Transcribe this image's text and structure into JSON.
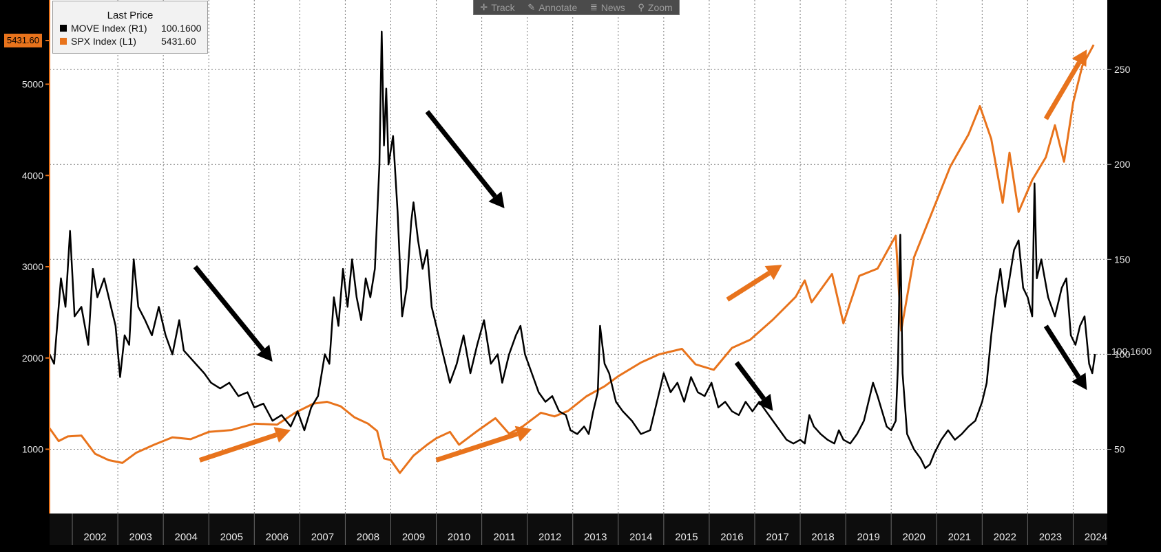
{
  "toolbar": {
    "items": [
      {
        "label": "Track",
        "icon": "crosshair-icon",
        "glyph": "✛"
      },
      {
        "label": "Annotate",
        "icon": "pencil-icon",
        "glyph": "✎"
      },
      {
        "label": "News",
        "icon": "news-icon",
        "glyph": "≣"
      },
      {
        "label": "Zoom",
        "icon": "magnifier-icon",
        "glyph": "⚲"
      }
    ]
  },
  "legend": {
    "title": "Last Price",
    "entries": [
      {
        "name": "MOVE Index  (R1)",
        "value": "100.1600",
        "color": "#000000"
      },
      {
        "name": "SPX Index  (L1)",
        "value": "5431.60",
        "color": "#e8731c"
      }
    ]
  },
  "badges": {
    "left_last": "5431.60",
    "right_last": "100.1600"
  },
  "colors": {
    "background": "#000000",
    "plot_background": "#ffffff",
    "spx": "#e8731c",
    "move": "#000000",
    "grid": "#7a7a7a"
  },
  "chart_data": {
    "type": "line",
    "x_ticks": [
      "2002",
      "2003",
      "2004",
      "2005",
      "2006",
      "2007",
      "2008",
      "2009",
      "2010",
      "2011",
      "2012",
      "2013",
      "2014",
      "2015",
      "2016",
      "2017",
      "2018",
      "2019",
      "2020",
      "2021",
      "2022",
      "2023",
      "2024"
    ],
    "left_axis": {
      "series": "SPX Index",
      "ticks": [
        1000,
        2000,
        3000,
        4000,
        5000
      ],
      "ylim": [
        500,
        5700
      ]
    },
    "right_axis": {
      "series": "MOVE Index",
      "ticks": [
        50,
        100,
        150,
        200,
        250
      ],
      "ylim": [
        15,
        285
      ]
    },
    "grid": true,
    "legend_position": "top-left",
    "series": [
      {
        "name": "SPX Index",
        "axis": "left",
        "color": "#e8731c",
        "points": [
          [
            2001.5,
            1230
          ],
          [
            2001.7,
            1090
          ],
          [
            2001.9,
            1140
          ],
          [
            2002.2,
            1150
          ],
          [
            2002.5,
            950
          ],
          [
            2002.8,
            880
          ],
          [
            2003.1,
            850
          ],
          [
            2003.4,
            960
          ],
          [
            2003.8,
            1050
          ],
          [
            2004.2,
            1130
          ],
          [
            2004.6,
            1110
          ],
          [
            2005.0,
            1190
          ],
          [
            2005.5,
            1210
          ],
          [
            2006.0,
            1280
          ],
          [
            2006.5,
            1270
          ],
          [
            2006.9,
            1400
          ],
          [
            2007.3,
            1500
          ],
          [
            2007.6,
            1520
          ],
          [
            2007.9,
            1470
          ],
          [
            2008.2,
            1350
          ],
          [
            2008.5,
            1280
          ],
          [
            2008.7,
            1200
          ],
          [
            2008.85,
            900
          ],
          [
            2009.0,
            880
          ],
          [
            2009.2,
            740
          ],
          [
            2009.5,
            930
          ],
          [
            2009.8,
            1050
          ],
          [
            2010.0,
            1120
          ],
          [
            2010.3,
            1190
          ],
          [
            2010.5,
            1050
          ],
          [
            2010.9,
            1200
          ],
          [
            2011.3,
            1340
          ],
          [
            2011.6,
            1170
          ],
          [
            2011.9,
            1250
          ],
          [
            2012.3,
            1400
          ],
          [
            2012.6,
            1360
          ],
          [
            2012.9,
            1420
          ],
          [
            2013.3,
            1580
          ],
          [
            2013.7,
            1690
          ],
          [
            2014.0,
            1800
          ],
          [
            2014.5,
            1950
          ],
          [
            2014.9,
            2040
          ],
          [
            2015.4,
            2100
          ],
          [
            2015.7,
            1930
          ],
          [
            2016.1,
            1870
          ],
          [
            2016.5,
            2110
          ],
          [
            2016.9,
            2200
          ],
          [
            2017.4,
            2420
          ],
          [
            2017.9,
            2670
          ],
          [
            2018.1,
            2850
          ],
          [
            2018.25,
            2610
          ],
          [
            2018.7,
            2920
          ],
          [
            2018.95,
            2380
          ],
          [
            2019.3,
            2900
          ],
          [
            2019.7,
            2980
          ],
          [
            2020.1,
            3340
          ],
          [
            2020.22,
            2300
          ],
          [
            2020.5,
            3100
          ],
          [
            2020.9,
            3600
          ],
          [
            2021.3,
            4100
          ],
          [
            2021.7,
            4450
          ],
          [
            2021.95,
            4760
          ],
          [
            2022.2,
            4400
          ],
          [
            2022.45,
            3700
          ],
          [
            2022.6,
            4250
          ],
          [
            2022.8,
            3600
          ],
          [
            2023.1,
            3950
          ],
          [
            2023.4,
            4200
          ],
          [
            2023.6,
            4550
          ],
          [
            2023.8,
            4150
          ],
          [
            2024.0,
            4800
          ],
          [
            2024.2,
            5200
          ],
          [
            2024.45,
            5431.6
          ]
        ]
      },
      {
        "name": "MOVE Index",
        "axis": "right",
        "color": "#000000",
        "points": [
          [
            2001.5,
            100
          ],
          [
            2001.6,
            95
          ],
          [
            2001.75,
            140
          ],
          [
            2001.85,
            125
          ],
          [
            2001.95,
            165
          ],
          [
            2002.05,
            120
          ],
          [
            2002.2,
            125
          ],
          [
            2002.35,
            105
          ],
          [
            2002.45,
            145
          ],
          [
            2002.55,
            130
          ],
          [
            2002.7,
            140
          ],
          [
            2002.85,
            125
          ],
          [
            2002.95,
            115
          ],
          [
            2003.05,
            88
          ],
          [
            2003.15,
            110
          ],
          [
            2003.25,
            105
          ],
          [
            2003.35,
            150
          ],
          [
            2003.45,
            125
          ],
          [
            2003.6,
            118
          ],
          [
            2003.75,
            110
          ],
          [
            2003.9,
            125
          ],
          [
            2004.05,
            110
          ],
          [
            2004.2,
            100
          ],
          [
            2004.35,
            118
          ],
          [
            2004.45,
            102
          ],
          [
            2004.6,
            98
          ],
          [
            2004.75,
            94
          ],
          [
            2004.9,
            90
          ],
          [
            2005.05,
            85
          ],
          [
            2005.25,
            82
          ],
          [
            2005.45,
            85
          ],
          [
            2005.65,
            78
          ],
          [
            2005.85,
            80
          ],
          [
            2006.0,
            72
          ],
          [
            2006.2,
            74
          ],
          [
            2006.4,
            65
          ],
          [
            2006.6,
            68
          ],
          [
            2006.8,
            62
          ],
          [
            2006.95,
            70
          ],
          [
            2007.1,
            60
          ],
          [
            2007.25,
            72
          ],
          [
            2007.4,
            78
          ],
          [
            2007.55,
            100
          ],
          [
            2007.65,
            95
          ],
          [
            2007.75,
            130
          ],
          [
            2007.85,
            115
          ],
          [
            2007.95,
            145
          ],
          [
            2008.05,
            125
          ],
          [
            2008.15,
            150
          ],
          [
            2008.25,
            130
          ],
          [
            2008.35,
            118
          ],
          [
            2008.45,
            140
          ],
          [
            2008.55,
            130
          ],
          [
            2008.65,
            145
          ],
          [
            2008.75,
            200
          ],
          [
            2008.8,
            270
          ],
          [
            2008.85,
            210
          ],
          [
            2008.9,
            240
          ],
          [
            2008.95,
            200
          ],
          [
            2009.05,
            215
          ],
          [
            2009.15,
            175
          ],
          [
            2009.25,
            120
          ],
          [
            2009.35,
            135
          ],
          [
            2009.45,
            170
          ],
          [
            2009.5,
            180
          ],
          [
            2009.6,
            160
          ],
          [
            2009.7,
            145
          ],
          [
            2009.8,
            155
          ],
          [
            2009.9,
            125
          ],
          [
            2010.05,
            110
          ],
          [
            2010.15,
            100
          ],
          [
            2010.3,
            85
          ],
          [
            2010.45,
            95
          ],
          [
            2010.6,
            110
          ],
          [
            2010.75,
            90
          ],
          [
            2010.9,
            105
          ],
          [
            2011.05,
            118
          ],
          [
            2011.2,
            95
          ],
          [
            2011.35,
            100
          ],
          [
            2011.45,
            85
          ],
          [
            2011.6,
            100
          ],
          [
            2011.75,
            110
          ],
          [
            2011.85,
            115
          ],
          [
            2011.95,
            100
          ],
          [
            2012.1,
            90
          ],
          [
            2012.25,
            80
          ],
          [
            2012.4,
            75
          ],
          [
            2012.55,
            78
          ],
          [
            2012.7,
            70
          ],
          [
            2012.85,
            68
          ],
          [
            2012.95,
            60
          ],
          [
            2013.1,
            58
          ],
          [
            2013.25,
            62
          ],
          [
            2013.35,
            58
          ],
          [
            2013.45,
            70
          ],
          [
            2013.55,
            80
          ],
          [
            2013.6,
            115
          ],
          [
            2013.7,
            95
          ],
          [
            2013.8,
            90
          ],
          [
            2013.95,
            75
          ],
          [
            2014.1,
            70
          ],
          [
            2014.3,
            65
          ],
          [
            2014.5,
            58
          ],
          [
            2014.7,
            60
          ],
          [
            2014.85,
            75
          ],
          [
            2015.0,
            90
          ],
          [
            2015.15,
            80
          ],
          [
            2015.3,
            85
          ],
          [
            2015.45,
            75
          ],
          [
            2015.6,
            88
          ],
          [
            2015.75,
            80
          ],
          [
            2015.9,
            78
          ],
          [
            2016.05,
            85
          ],
          [
            2016.2,
            72
          ],
          [
            2016.35,
            75
          ],
          [
            2016.5,
            70
          ],
          [
            2016.65,
            68
          ],
          [
            2016.8,
            75
          ],
          [
            2016.95,
            70
          ],
          [
            2017.1,
            75
          ],
          [
            2017.25,
            70
          ],
          [
            2017.4,
            65
          ],
          [
            2017.55,
            60
          ],
          [
            2017.7,
            55
          ],
          [
            2017.85,
            53
          ],
          [
            2018.0,
            55
          ],
          [
            2018.1,
            53
          ],
          [
            2018.2,
            68
          ],
          [
            2018.3,
            62
          ],
          [
            2018.45,
            58
          ],
          [
            2018.6,
            55
          ],
          [
            2018.75,
            53
          ],
          [
            2018.85,
            60
          ],
          [
            2018.95,
            55
          ],
          [
            2019.1,
            53
          ],
          [
            2019.25,
            58
          ],
          [
            2019.4,
            65
          ],
          [
            2019.5,
            75
          ],
          [
            2019.6,
            85
          ],
          [
            2019.7,
            78
          ],
          [
            2019.8,
            70
          ],
          [
            2019.9,
            62
          ],
          [
            2020.0,
            60
          ],
          [
            2020.1,
            65
          ],
          [
            2020.15,
            95
          ],
          [
            2020.2,
            163
          ],
          [
            2020.25,
            90
          ],
          [
            2020.35,
            58
          ],
          [
            2020.5,
            50
          ],
          [
            2020.65,
            45
          ],
          [
            2020.75,
            40
          ],
          [
            2020.85,
            42
          ],
          [
            2020.95,
            48
          ],
          [
            2021.1,
            55
          ],
          [
            2021.25,
            60
          ],
          [
            2021.4,
            55
          ],
          [
            2021.55,
            58
          ],
          [
            2021.7,
            62
          ],
          [
            2021.85,
            65
          ],
          [
            2022.0,
            75
          ],
          [
            2022.1,
            85
          ],
          [
            2022.2,
            110
          ],
          [
            2022.3,
            130
          ],
          [
            2022.4,
            145
          ],
          [
            2022.5,
            125
          ],
          [
            2022.6,
            140
          ],
          [
            2022.7,
            155
          ],
          [
            2022.8,
            160
          ],
          [
            2022.9,
            135
          ],
          [
            2023.0,
            130
          ],
          [
            2023.1,
            120
          ],
          [
            2023.15,
            190
          ],
          [
            2023.2,
            140
          ],
          [
            2023.3,
            150
          ],
          [
            2023.45,
            130
          ],
          [
            2023.6,
            120
          ],
          [
            2023.75,
            135
          ],
          [
            2023.85,
            140
          ],
          [
            2023.95,
            110
          ],
          [
            2024.05,
            105
          ],
          [
            2024.15,
            115
          ],
          [
            2024.25,
            120
          ],
          [
            2024.35,
            95
          ],
          [
            2024.42,
            90
          ],
          [
            2024.48,
            100.16
          ]
        ]
      }
    ],
    "annotations": [
      {
        "type": "arrow",
        "color": "black",
        "from": [
          2004.7,
          3000
        ],
        "to": [
          2006.4,
          1960
        ],
        "axis": "left"
      },
      {
        "type": "arrow",
        "color": "black",
        "from": [
          2009.8,
          4700
        ],
        "to": [
          2011.5,
          3640
        ],
        "axis": "left"
      },
      {
        "type": "arrow",
        "color": "black",
        "from": [
          2016.6,
          1950
        ],
        "to": [
          2017.4,
          1420
        ],
        "axis": "left"
      },
      {
        "type": "arrow",
        "color": "black",
        "from": [
          2023.4,
          2350
        ],
        "to": [
          2024.3,
          1650
        ],
        "axis": "left"
      },
      {
        "type": "arrow",
        "color": "orange",
        "from": [
          2004.8,
          880
        ],
        "to": [
          2006.8,
          1210
        ],
        "axis": "left"
      },
      {
        "type": "arrow",
        "color": "orange",
        "from": [
          2010.0,
          880
        ],
        "to": [
          2012.1,
          1220
        ],
        "axis": "left"
      },
      {
        "type": "arrow",
        "color": "orange",
        "from": [
          2016.4,
          2640
        ],
        "to": [
          2017.6,
          3020
        ],
        "axis": "left"
      },
      {
        "type": "arrow",
        "color": "orange",
        "from": [
          2023.4,
          4620
        ],
        "to": [
          2024.3,
          5380
        ],
        "axis": "left"
      }
    ]
  }
}
